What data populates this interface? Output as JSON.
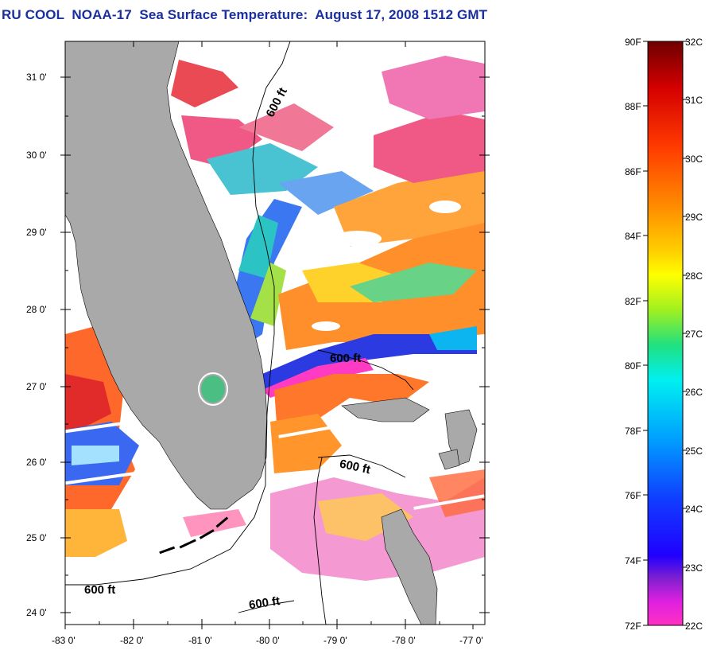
{
  "title": "RU COOL  NOAA-17  Sea Surface Temperature:  August 17, 2008 1512 GMT",
  "map": {
    "lat_labels": [
      "31 0'",
      "30 0'",
      "29 0'",
      "28 0'",
      "27 0'",
      "26 0'",
      "25 0'",
      "24 0'"
    ],
    "lon_labels": [
      "-83 0'",
      "-82 0'",
      "-81 0'",
      "-80 0'",
      "-79 0'",
      "-78 0'",
      "-77 0'"
    ],
    "contour_labels": [
      "600 ft",
      "600 ft",
      "600 ft",
      "600 ft",
      "600 ft"
    ],
    "colors": {
      "land": "#a9a9a9",
      "no_data": "#ffffff",
      "title": "#1a2fa0"
    }
  },
  "colorbar": {
    "fahrenheit_labels": [
      "90F",
      "88F",
      "86F",
      "84F",
      "82F",
      "80F",
      "78F",
      "76F",
      "74F",
      "72F"
    ],
    "celsius_labels": [
      "32C",
      "31C",
      "30C",
      "29C",
      "28C",
      "27C",
      "26C",
      "25C",
      "24C",
      "23C",
      "22C"
    ],
    "gradient_stops_top_to_bottom": [
      "#6e0000",
      "#d40000",
      "#ff3a00",
      "#ff8a00",
      "#ffd000",
      "#ffff00",
      "#a0f020",
      "#20e080",
      "#00f0f0",
      "#00a0ff",
      "#1040ff",
      "#2000ff",
      "#8020d0",
      "#e020e0",
      "#ff30c0"
    ]
  }
}
